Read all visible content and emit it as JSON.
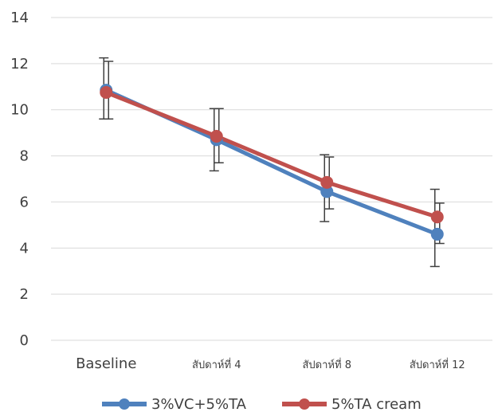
{
  "chart_data": {
    "type": "line",
    "title": "",
    "xlabel": "",
    "ylabel": "",
    "ylim": [
      0,
      14
    ],
    "yticks": [
      0,
      2,
      4,
      6,
      8,
      10,
      12,
      14
    ],
    "grid": "horizontal",
    "legend_position": "bottom",
    "categories": [
      "Baseline",
      "สัปดาห์ที่ 4",
      "สัปดาห์ที่ 8",
      "สัปดาห์ที่ 12"
    ],
    "series": [
      {
        "name": "3%VC+5%TA",
        "color": "#4F81BD",
        "values": [
          10.85,
          8.7,
          6.45,
          4.6
        ],
        "error_low": [
          9.6,
          7.35,
          5.15,
          3.2
        ],
        "error_high": [
          12.25,
          10.05,
          8.05,
          6.55
        ]
      },
      {
        "name": "5%TA cream",
        "color": "#C0504D",
        "values": [
          10.75,
          8.85,
          6.85,
          5.35
        ],
        "error_low": [
          9.6,
          7.7,
          5.7,
          4.2
        ],
        "error_high": [
          12.1,
          10.05,
          7.95,
          5.95
        ]
      }
    ]
  }
}
